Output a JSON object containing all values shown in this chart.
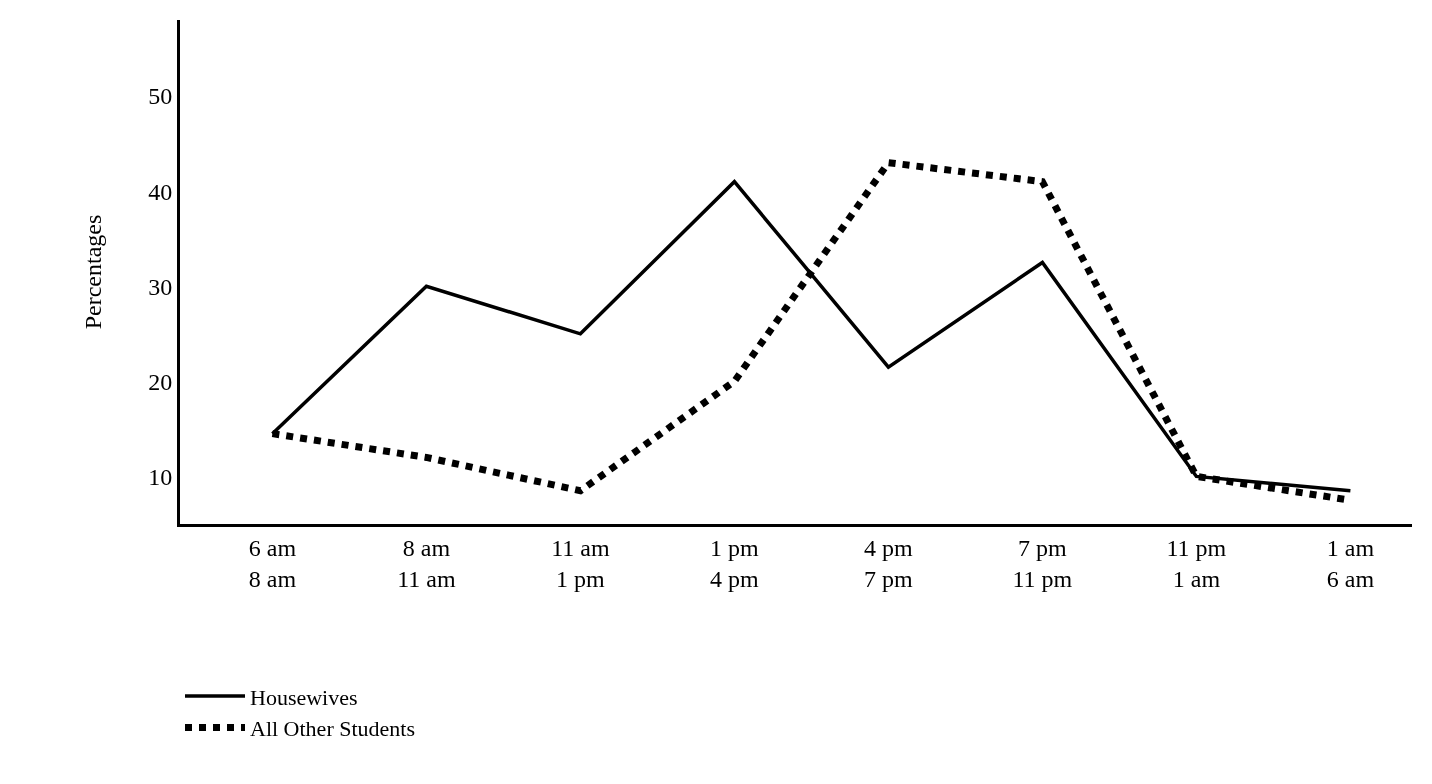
{
  "chart_data": {
    "type": "line",
    "ylabel": "Percentages",
    "categories": [
      "6 am\n8 am",
      "8 am\n11 am",
      "11 am\n1 pm",
      "1 pm\n4 pm",
      "4 pm\n7 pm",
      "7 pm\n11 pm",
      "11 pm\n1 am",
      "1 am\n6 am"
    ],
    "series": [
      {
        "name": "Housewives",
        "color": "#000000",
        "line_style": "solid",
        "values": [
          14.5,
          30,
          25,
          41,
          21.5,
          32.5,
          10,
          8.5
        ]
      },
      {
        "name": "All Other Students",
        "color": "#000000",
        "line_style": "dotted",
        "values": [
          14.5,
          12,
          8.5,
          20,
          43,
          41,
          10,
          7.5
        ]
      }
    ],
    "ylim": [
      5,
      58
    ],
    "yticks": [
      10,
      20,
      30,
      40,
      50
    ],
    "legend": "bottom left",
    "marker": "none"
  }
}
